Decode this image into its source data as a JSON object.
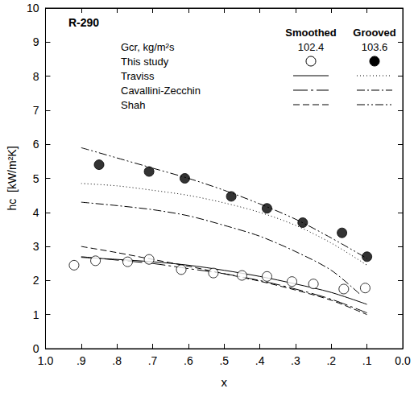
{
  "chart_data": {
    "type": "line",
    "title": "R-290",
    "xlabel": "x",
    "ylabel": "hc  [kW/m²K]",
    "xlim": [
      1,
      0
    ],
    "xticks": [
      {
        "value": 1,
        "label": "1.0"
      },
      {
        "value": 0.9,
        "label": ".9"
      },
      {
        "value": 0.8,
        "label": ".8"
      },
      {
        "value": 0.7,
        "label": ".7"
      },
      {
        "value": 0.6,
        "label": ".6"
      },
      {
        "value": 0.5,
        "label": ".5"
      },
      {
        "value": 0.4,
        "label": ".4"
      },
      {
        "value": 0.3,
        "label": ".3"
      },
      {
        "value": 0.2,
        "label": ".2"
      },
      {
        "value": 0.1,
        "label": ".1"
      },
      {
        "value": 0,
        "label": "0.0"
      }
    ],
    "ylim": [
      0,
      10
    ],
    "yticks": [
      0,
      1,
      2,
      3,
      4,
      5,
      6,
      7,
      8,
      9,
      10
    ],
    "grid": false,
    "legend": "upper right",
    "groups": [
      "Smoothed",
      "Grooved"
    ],
    "annotations": [
      {
        "text": "Gcr, kg/m²s",
        "values": [
          102.4,
          103.6
        ]
      }
    ],
    "series": [
      {
        "name": "This study",
        "surface": "Smoothed",
        "type": "scatter",
        "marker": "circle-open",
        "color": "#000000",
        "x": [
          0.92,
          0.86,
          0.77,
          0.71,
          0.62,
          0.53,
          0.45,
          0.38,
          0.31,
          0.25,
          0.165,
          0.105
        ],
        "values": [
          2.45,
          2.58,
          2.55,
          2.62,
          2.32,
          2.22,
          2.15,
          2.12,
          1.97,
          1.9,
          1.75,
          1.78
        ]
      },
      {
        "name": "This study",
        "surface": "Grooved",
        "type": "scatter",
        "marker": "circle",
        "color": "#000000",
        "x": [
          0.85,
          0.71,
          0.61,
          0.48,
          0.38,
          0.28,
          0.17,
          0.1
        ],
        "values": [
          5.4,
          5.2,
          5.0,
          4.47,
          4.12,
          3.7,
          3.4,
          2.7
        ]
      },
      {
        "name": "Traviss",
        "surface": "Smoothed",
        "type": "line",
        "line_style": "solid",
        "color": "#000000",
        "x": [
          0.9,
          0.8,
          0.7,
          0.6,
          0.5,
          0.4,
          0.3,
          0.2,
          0.1
        ],
        "values": [
          2.68,
          2.62,
          2.55,
          2.45,
          2.3,
          2.12,
          1.9,
          1.65,
          1.3
        ]
      },
      {
        "name": "Traviss",
        "surface": "Grooved",
        "type": "line",
        "line_style": "dotted",
        "color": "#000000",
        "x": [
          0.9,
          0.8,
          0.7,
          0.6,
          0.5,
          0.4,
          0.3,
          0.2,
          0.1
        ],
        "values": [
          4.85,
          4.78,
          4.65,
          4.5,
          4.28,
          4.0,
          3.62,
          3.1,
          2.45
        ]
      },
      {
        "name": "Cavallini-Zecchin",
        "surface": "Smoothed",
        "type": "line",
        "line_style": "longdashdot",
        "color": "#000000",
        "x": [
          0.9,
          0.8,
          0.7,
          0.6,
          0.5,
          0.4,
          0.3,
          0.2,
          0.1
        ],
        "values": [
          2.7,
          2.6,
          2.5,
          2.35,
          2.2,
          2.0,
          1.75,
          1.45,
          1.05
        ]
      },
      {
        "name": "Cavallini-Zecchin",
        "surface": "Grooved",
        "type": "line",
        "line_style": "dashdot",
        "color": "#000000",
        "x": [
          0.9,
          0.8,
          0.7,
          0.6,
          0.5,
          0.4,
          0.3,
          0.2,
          0.12
        ],
        "values": [
          4.3,
          4.2,
          4.08,
          3.9,
          3.62,
          3.3,
          2.85,
          2.3,
          1.6
        ]
      },
      {
        "name": "Shah",
        "surface": "Smoothed",
        "type": "line",
        "line_style": "dashed",
        "color": "#000000",
        "x": [
          0.9,
          0.8,
          0.7,
          0.6,
          0.5,
          0.4,
          0.3,
          0.2,
          0.1
        ],
        "values": [
          3.0,
          2.82,
          2.62,
          2.42,
          2.2,
          1.98,
          1.72,
          1.42,
          1.0
        ]
      },
      {
        "name": "Shah",
        "surface": "Grooved",
        "type": "line",
        "line_style": "dashdotdot",
        "color": "#000000",
        "x": [
          0.9,
          0.8,
          0.7,
          0.6,
          0.5,
          0.4,
          0.3,
          0.2,
          0.1
        ],
        "values": [
          5.9,
          5.6,
          5.3,
          5.0,
          4.65,
          4.25,
          3.8,
          3.25,
          2.65
        ]
      }
    ]
  }
}
